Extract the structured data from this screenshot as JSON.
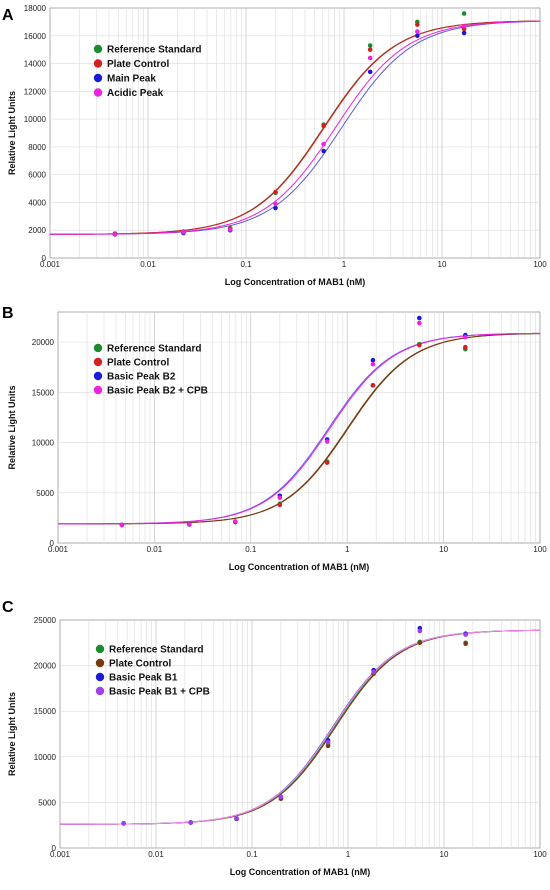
{
  "chart_data": [
    {
      "type": "scatter",
      "panel_label": "A",
      "xlabel": "Log Concentration of MAB1 (nM)",
      "ylabel": "Relative Light Units",
      "xscale": "log",
      "xlim": [
        0.001,
        100
      ],
      "ylim": [
        0,
        18000
      ],
      "x_tick_labels": [
        "0.001",
        "0.01",
        "0.1",
        "1",
        "10",
        "100"
      ],
      "y_ticks": [
        0,
        2000,
        4000,
        6000,
        8000,
        10000,
        12000,
        14000,
        16000,
        18000
      ],
      "grid": true,
      "legend_position": "top-left",
      "series": [
        {
          "name": "Reference Standard",
          "color": "#1e8a2e",
          "points": [
            [
              0.0046,
              1750
            ],
            [
              0.023,
              1900
            ],
            [
              0.069,
              2150
            ],
            [
              0.2,
              4700
            ],
            [
              0.62,
              9600
            ],
            [
              1.85,
              15300
            ],
            [
              5.6,
              17000
            ],
            [
              16.8,
              17600
            ]
          ],
          "curve": {
            "bottom": 1700,
            "top": 17100,
            "ec50": 0.62,
            "hill": 1.2,
            "color": "#6b4a16"
          }
        },
        {
          "name": "Plate Control",
          "color": "#d42020",
          "points": [
            [
              0.0046,
              1750
            ],
            [
              0.023,
              1850
            ],
            [
              0.069,
              2100
            ],
            [
              0.2,
              4750
            ],
            [
              0.62,
              9500
            ],
            [
              1.85,
              15000
            ],
            [
              5.6,
              16800
            ],
            [
              16.8,
              16500
            ]
          ],
          "curve": {
            "bottom": 1700,
            "top": 17100,
            "ec50": 0.63,
            "hill": 1.2,
            "color": "#d42020"
          }
        },
        {
          "name": "Main Peak",
          "color": "#1a1ad8",
          "points": [
            [
              0.0046,
              1700
            ],
            [
              0.023,
              1800
            ],
            [
              0.069,
              2000
            ],
            [
              0.2,
              3600
            ],
            [
              0.62,
              7700
            ],
            [
              1.85,
              13400
            ],
            [
              5.6,
              16000
            ],
            [
              16.8,
              16200
            ]
          ],
          "curve": {
            "bottom": 1700,
            "top": 17100,
            "ec50": 0.95,
            "hill": 1.2,
            "color": "#5b5bd8"
          }
        },
        {
          "name": "Acidic Peak",
          "color": "#ee22e0",
          "points": [
            [
              0.0046,
              1700
            ],
            [
              0.023,
              1850
            ],
            [
              0.069,
              2050
            ],
            [
              0.2,
              3900
            ],
            [
              0.62,
              8200
            ],
            [
              1.85,
              14400
            ],
            [
              5.6,
              16300
            ],
            [
              16.8,
              16700
            ]
          ],
          "curve": {
            "bottom": 1700,
            "top": 17100,
            "ec50": 0.82,
            "hill": 1.2,
            "color": "#ee22e0"
          }
        }
      ]
    },
    {
      "type": "scatter",
      "panel_label": "B",
      "xlabel": "Log Concentration of MAB1 (nM)",
      "ylabel": "Relative Light Units",
      "xscale": "log",
      "xlim": [
        0.001,
        100
      ],
      "ylim": [
        0,
        23000
      ],
      "x_tick_labels": [
        "0.001",
        "0.01",
        "0.1",
        "1",
        "10",
        "100"
      ],
      "y_ticks": [
        0,
        5000,
        10000,
        15000,
        20000
      ],
      "grid": true,
      "legend_position": "top-left",
      "series": [
        {
          "name": "Reference Standard",
          "color": "#1e8a2e",
          "points": [
            [
              0.0046,
              1800
            ],
            [
              0.023,
              1850
            ],
            [
              0.069,
              2100
            ],
            [
              0.2,
              3900
            ],
            [
              0.62,
              8100
            ],
            [
              1.85,
              15700
            ],
            [
              5.6,
              19800
            ],
            [
              16.8,
              19300
            ]
          ],
          "curve": {
            "bottom": 1900,
            "top": 20900,
            "ec50": 1.0,
            "hill": 1.3,
            "color": "#6b4a16"
          }
        },
        {
          "name": "Plate Control",
          "color": "#d42020",
          "points": [
            [
              0.0046,
              1800
            ],
            [
              0.023,
              1850
            ],
            [
              0.069,
              2100
            ],
            [
              0.2,
              3800
            ],
            [
              0.62,
              8000
            ],
            [
              1.85,
              15700
            ],
            [
              5.6,
              19700
            ],
            [
              16.8,
              19500
            ]
          ],
          "curve": {
            "bottom": 1900,
            "top": 20900,
            "ec50": 1.02,
            "hill": 1.3,
            "color": "#7a3a10"
          }
        },
        {
          "name": "Basic Peak B2",
          "color": "#1a1ad8",
          "points": [
            [
              0.0046,
              1800
            ],
            [
              0.023,
              1850
            ],
            [
              0.069,
              2100
            ],
            [
              0.2,
              4700
            ],
            [
              0.62,
              10300
            ],
            [
              1.85,
              18200
            ],
            [
              5.6,
              22400
            ],
            [
              16.8,
              20700
            ]
          ],
          "curve": {
            "bottom": 1900,
            "top": 20900,
            "ec50": 0.64,
            "hill": 1.3,
            "color": "#6060e0"
          }
        },
        {
          "name": "Basic Peak B2 + CPB",
          "color": "#ee22e0",
          "points": [
            [
              0.0046,
              1800
            ],
            [
              0.023,
              1850
            ],
            [
              0.069,
              2150
            ],
            [
              0.2,
              4500
            ],
            [
              0.62,
              10100
            ],
            [
              1.85,
              17800
            ],
            [
              5.6,
              21900
            ],
            [
              16.8,
              20500
            ]
          ],
          "curve": {
            "bottom": 1900,
            "top": 20900,
            "ec50": 0.66,
            "hill": 1.3,
            "color": "#ee22e0"
          }
        }
      ]
    },
    {
      "type": "scatter",
      "panel_label": "C",
      "xlabel": "Log Concentration of MAB1 (nM)",
      "ylabel": "Relative Light Units",
      "xscale": "log",
      "xlim": [
        0.001,
        100
      ],
      "ylim": [
        0,
        25000
      ],
      "x_tick_labels": [
        "0.001",
        "0.01",
        "0.1",
        "1",
        "10",
        "100"
      ],
      "y_ticks": [
        0,
        5000,
        10000,
        15000,
        20000,
        25000
      ],
      "grid": true,
      "legend_position": "top-left",
      "series": [
        {
          "name": "Reference Standard",
          "color": "#1e8a2e",
          "points": [
            [
              0.0046,
              2700
            ],
            [
              0.023,
              2800
            ],
            [
              0.069,
              3200
            ],
            [
              0.2,
              5500
            ],
            [
              0.62,
              11400
            ],
            [
              1.85,
              19200
            ],
            [
              5.6,
              22600
            ],
            [
              16.8,
              22500
            ]
          ],
          "curve": {
            "bottom": 2600,
            "top": 23900,
            "ec50": 0.72,
            "hill": 1.3,
            "color": "#1e8a2e"
          }
        },
        {
          "name": "Plate Control",
          "color": "#7a3a10",
          "points": [
            [
              0.0046,
              2700
            ],
            [
              0.023,
              2800
            ],
            [
              0.069,
              3200
            ],
            [
              0.2,
              5400
            ],
            [
              0.62,
              11200
            ],
            [
              1.85,
              19100
            ],
            [
              5.6,
              22500
            ],
            [
              16.8,
              22400
            ]
          ],
          "curve": {
            "bottom": 2600,
            "top": 23900,
            "ec50": 0.74,
            "hill": 1.3,
            "color": "#7a3a10"
          }
        },
        {
          "name": "Basic Peak B1",
          "color": "#1a1ad8",
          "points": [
            [
              0.0046,
              2700
            ],
            [
              0.023,
              2800
            ],
            [
              0.069,
              3250
            ],
            [
              0.2,
              5600
            ],
            [
              0.62,
              11800
            ],
            [
              1.85,
              19500
            ],
            [
              5.6,
              24100
            ],
            [
              16.8,
              23500
            ]
          ],
          "curve": {
            "bottom": 2600,
            "top": 23900,
            "ec50": 0.69,
            "hill": 1.3,
            "color": "#4040d8"
          }
        },
        {
          "name": "Basic Peak B1 + CPB",
          "color": "#a040e8",
          "points": [
            [
              0.0046,
              2700
            ],
            [
              0.023,
              2800
            ],
            [
              0.069,
              3250
            ],
            [
              0.2,
              5600
            ],
            [
              0.62,
              11600
            ],
            [
              1.85,
              19300
            ],
            [
              5.6,
              23800
            ],
            [
              16.8,
              23400
            ]
          ],
          "curve": {
            "bottom": 2600,
            "top": 23900,
            "ec50": 0.7,
            "hill": 1.3,
            "color": "#ff88ee"
          }
        }
      ]
    }
  ]
}
